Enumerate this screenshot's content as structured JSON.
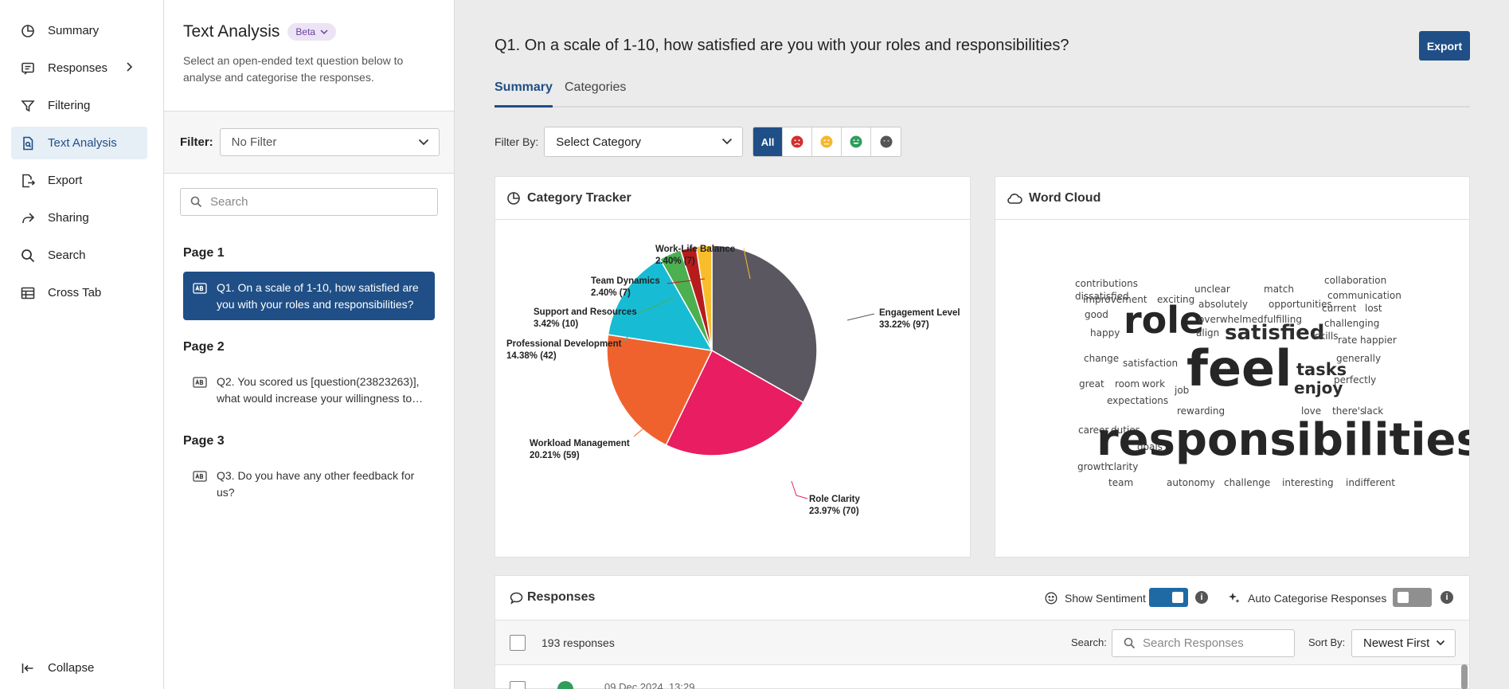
{
  "nav": {
    "items": [
      {
        "label": "Summary"
      },
      {
        "label": "Responses"
      },
      {
        "label": "Filtering"
      },
      {
        "label": "Text Analysis"
      },
      {
        "label": "Export"
      },
      {
        "label": "Sharing"
      },
      {
        "label": "Search"
      },
      {
        "label": "Cross Tab"
      }
    ],
    "collapse": "Collapse"
  },
  "panel": {
    "title": "Text Analysis",
    "beta": "Beta",
    "description": "Select an open-ended text question below to analyse and categorise the responses.",
    "filter_label": "Filter:",
    "filter_value": "No Filter",
    "search_placeholder": "Search",
    "pages": [
      {
        "label": "Page 1",
        "question": "Q1. On a scale of 1-10, how satisfied are you with your roles and responsibilities?"
      },
      {
        "label": "Page 2",
        "question": "Q2. You scored us [question(23823263)], what would increase your willingness to…"
      },
      {
        "label": "Page 3",
        "question": "Q3. Do you have any other feedback for us?"
      }
    ]
  },
  "main": {
    "title": "Q1. On a scale of 1-10, how satisfied are you with your roles and responsibilities?",
    "export": "Export",
    "tabs": [
      "Summary",
      "Categories"
    ],
    "filter_by_label": "Filter By:",
    "filter_by_value": "Select Category",
    "sentiment_all": "All"
  },
  "category_tracker": {
    "title": "Category Tracker"
  },
  "chart_data": {
    "type": "pie",
    "title": "Category Tracker",
    "slices": [
      {
        "label": "Engagement Level",
        "value_text": "33.22% (97)",
        "percent": 33.22,
        "count": 97,
        "color": "#5b5760"
      },
      {
        "label": "Role Clarity",
        "value_text": "23.97% (70)",
        "percent": 23.97,
        "count": 70,
        "color": "#e81d62"
      },
      {
        "label": "Workload Management",
        "value_text": "20.21% (59)",
        "percent": 20.21,
        "count": 59,
        "color": "#f0622d"
      },
      {
        "label": "Professional Development",
        "value_text": "14.38% (42)",
        "percent": 14.38,
        "count": 42,
        "color": "#17bcd4"
      },
      {
        "label": "Support and Resources",
        "value_text": "3.42% (10)",
        "percent": 3.42,
        "count": 10,
        "color": "#4caf50"
      },
      {
        "label": "Team Dynamics",
        "value_text": "2.40% (7)",
        "percent": 2.4,
        "count": 7,
        "color": "#b71c1c"
      },
      {
        "label": "Work-Life Balance",
        "value_text": "2.40% (7)",
        "percent": 2.4,
        "count": 7,
        "color": "#f9bd2b"
      }
    ]
  },
  "word_cloud": {
    "title": "Word Cloud",
    "words": [
      {
        "text": "contributions",
        "size": 12
      },
      {
        "text": "improvement",
        "size": 12
      },
      {
        "text": "exciting",
        "size": 12
      },
      {
        "text": "unclear",
        "size": 12
      },
      {
        "text": "match",
        "size": 12
      },
      {
        "text": "collaboration",
        "size": 12
      },
      {
        "text": "communication",
        "size": 12
      },
      {
        "text": "absolutely",
        "size": 12
      },
      {
        "text": "opportunities",
        "size": 12
      },
      {
        "text": "good",
        "size": 12
      },
      {
        "text": "role",
        "size": 46
      },
      {
        "text": "current",
        "size": 12
      },
      {
        "text": "lost",
        "size": 12
      },
      {
        "text": "overwhelmed",
        "size": 12
      },
      {
        "text": "fulfilling",
        "size": 12
      },
      {
        "text": "challenging",
        "size": 12
      },
      {
        "text": "happy",
        "size": 12
      },
      {
        "text": "align",
        "size": 12
      },
      {
        "text": "satisfied",
        "size": 26
      },
      {
        "text": "skills",
        "size": 12
      },
      {
        "text": "rate",
        "size": 12
      },
      {
        "text": "happier",
        "size": 12
      },
      {
        "text": "change",
        "size": 12
      },
      {
        "text": "satisfaction",
        "size": 12
      },
      {
        "text": "feel",
        "size": 62
      },
      {
        "text": "tasks",
        "size": 21
      },
      {
        "text": "generally",
        "size": 12
      },
      {
        "text": "great",
        "size": 12
      },
      {
        "text": "room",
        "size": 12
      },
      {
        "text": "work",
        "size": 12
      },
      {
        "text": "job",
        "size": 12
      },
      {
        "text": "enjoy",
        "size": 20
      },
      {
        "text": "perfectly",
        "size": 12
      },
      {
        "text": "expectations",
        "size": 12
      },
      {
        "text": "rewarding",
        "size": 12
      },
      {
        "text": "love",
        "size": 12
      },
      {
        "text": "there's",
        "size": 12
      },
      {
        "text": "lack",
        "size": 12
      },
      {
        "text": "career",
        "size": 12
      },
      {
        "text": "duties",
        "size": 12
      },
      {
        "text": "goals",
        "size": 12
      },
      {
        "text": "responsibilities",
        "size": 56
      },
      {
        "text": "growth",
        "size": 12
      },
      {
        "text": "clarity",
        "size": 12
      },
      {
        "text": "team",
        "size": 12
      },
      {
        "text": "autonomy",
        "size": 12
      },
      {
        "text": "challenge",
        "size": 12
      },
      {
        "text": "interesting",
        "size": 12
      },
      {
        "text": "indifferent",
        "size": 12
      },
      {
        "text": "dissatisfied",
        "size": 12
      }
    ]
  },
  "responses": {
    "title": "Responses",
    "show_sentiment": "Show Sentiment",
    "auto_categorise": "Auto Categorise Responses",
    "count": "193 responses",
    "search_label": "Search:",
    "search_placeholder": "Search Responses",
    "sort_label": "Sort By:",
    "sort_value": "Newest First",
    "first_date": "09 Dec 2024, 13:29"
  }
}
